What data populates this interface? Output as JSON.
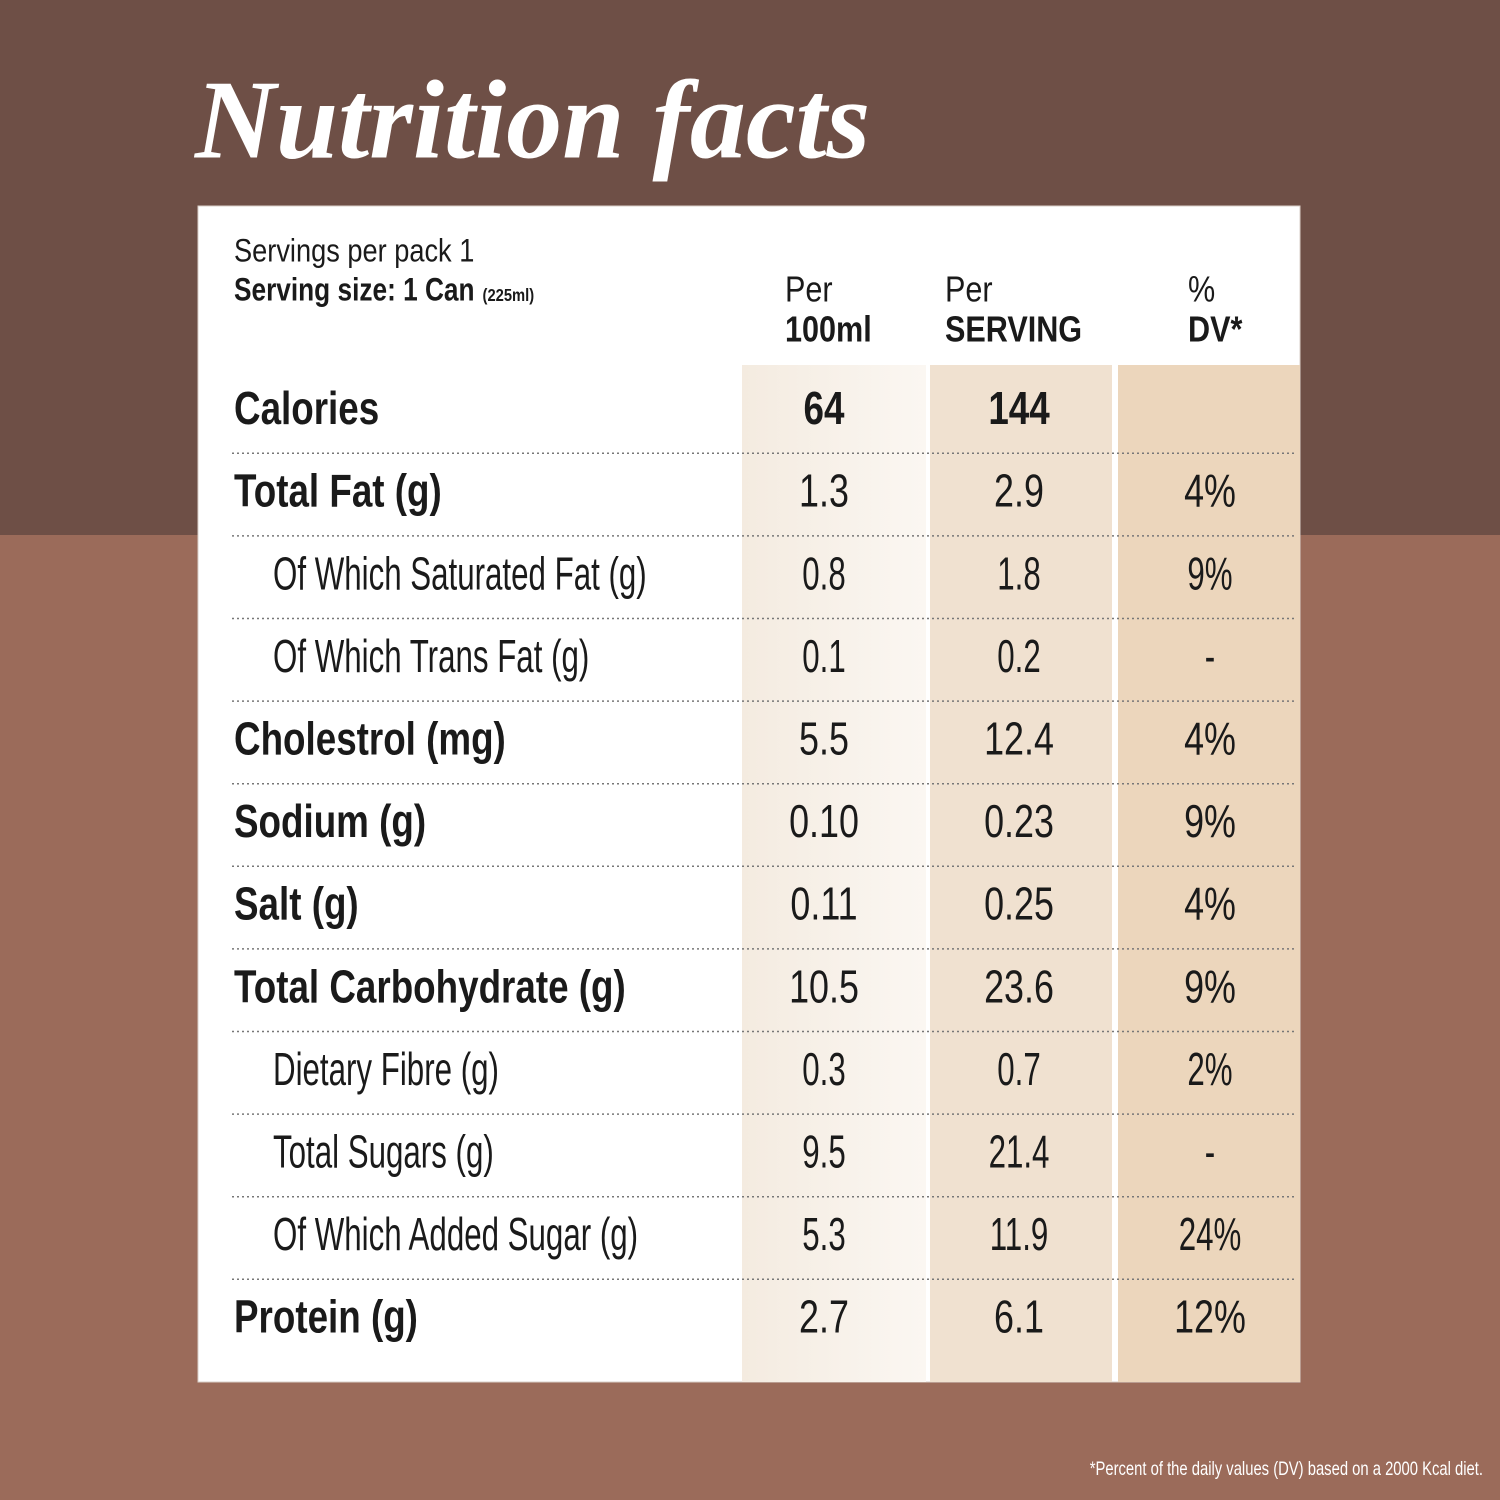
{
  "title": "Nutrition facts",
  "header": {
    "servings": "Servings per pack 1",
    "serving_size": "Serving size: 1 Can",
    "serving_size_note": "(225ml)",
    "columns": [
      {
        "top": "Per",
        "bottom": "100ml"
      },
      {
        "top": "Per",
        "bottom": "SERVING"
      },
      {
        "top": "%",
        "bottom": "DV*"
      }
    ]
  },
  "rows": [
    {
      "label": "Calories",
      "per_100ml": "64",
      "per_serving": "144"
    },
    {
      "label": "Total Fat (g)",
      "per_100ml": "1.3",
      "per_serving": "2.9",
      "dv": "4%",
      "sub": [
        {
          "label": "Of Which Saturated Fat (g)",
          "per_100ml": "0.8",
          "per_serving": "1.8",
          "dv": "9%"
        },
        {
          "label": "Of Which Trans Fat (g)",
          "per_100ml": "0.1",
          "per_serving": "0.2",
          "dv": "-"
        }
      ]
    },
    {
      "label": "Cholestrol (mg)",
      "per_100ml": "5.5",
      "per_serving": "12.4",
      "dv": "4%"
    },
    {
      "label": "Sodium (g)",
      "per_100ml": "0.10",
      "per_serving": "0.23",
      "dv": "9%"
    },
    {
      "label": "Salt (g)",
      "per_100ml": "0.11",
      "per_serving": "0.25",
      "dv": "4%"
    },
    {
      "label": "Total Carbohydrate (g)",
      "per_100ml": "10.5",
      "per_serving": "23.6",
      "dv": "9%",
      "sub": [
        {
          "label": "Dietary Fibre (g)",
          "per_100ml": "0.3",
          "per_serving": "0.7",
          "dv": "2%"
        },
        {
          "label": "Total Sugars (g)",
          "per_100ml": "9.5",
          "per_serving": "21.4",
          "dv": "-"
        },
        {
          "label": "Of Which Added Sugar (g)",
          "per_100ml": "5.3",
          "per_serving": "11.9",
          "dv": "24%"
        }
      ]
    },
    {
      "label": "Protein (g)",
      "per_100ml": "2.7",
      "per_serving": "6.1",
      "dv": "12%"
    }
  ],
  "footnote": "*Percent of the daily values (DV) based on a 2000 Kcal diet."
}
